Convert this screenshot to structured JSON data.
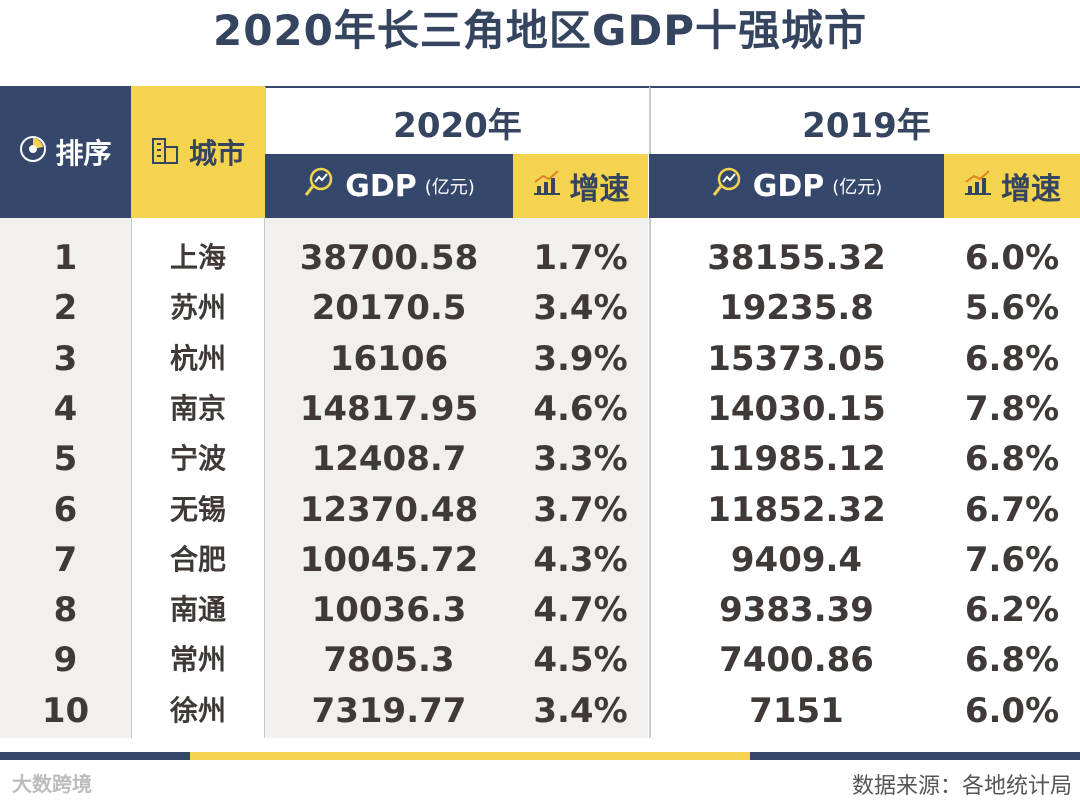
{
  "title": "2020年长三角地区GDP十强城市",
  "header": {
    "rank": "排序",
    "city": "城市",
    "year_2020": "2020年",
    "year_2019": "2019年",
    "gdp": "GDP",
    "gdp_unit": "(亿元)",
    "growth": "增速"
  },
  "chart_data": {
    "type": "table",
    "title": "2020年长三角地区GDP十强城市",
    "columns": [
      "排序",
      "城市",
      "2020年 GDP (亿元)",
      "2020年 增速",
      "2019年 GDP (亿元)",
      "2019年 增速"
    ],
    "rows": [
      {
        "rank": "1",
        "city": "上海",
        "gdp2020": "38700.58",
        "growth2020": "1.7%",
        "gdp2019": "38155.32",
        "growth2019": "6.0%"
      },
      {
        "rank": "2",
        "city": "苏州",
        "gdp2020": "20170.5",
        "growth2020": "3.4%",
        "gdp2019": "19235.8",
        "growth2019": "5.6%"
      },
      {
        "rank": "3",
        "city": "杭州",
        "gdp2020": "16106",
        "growth2020": "3.9%",
        "gdp2019": "15373.05",
        "growth2019": "6.8%"
      },
      {
        "rank": "4",
        "city": "南京",
        "gdp2020": "14817.95",
        "growth2020": "4.6%",
        "gdp2019": "14030.15",
        "growth2019": "7.8%"
      },
      {
        "rank": "5",
        "city": "宁波",
        "gdp2020": "12408.7",
        "growth2020": "3.3%",
        "gdp2019": "11985.12",
        "growth2019": "6.8%"
      },
      {
        "rank": "6",
        "city": "无锡",
        "gdp2020": "12370.48",
        "growth2020": "3.7%",
        "gdp2019": "11852.32",
        "growth2019": "6.7%"
      },
      {
        "rank": "7",
        "city": "合肥",
        "gdp2020": "10045.72",
        "growth2020": "4.3%",
        "gdp2019": "9409.4",
        "growth2019": "7.6%"
      },
      {
        "rank": "8",
        "city": "南通",
        "gdp2020": "10036.3",
        "growth2020": "4.7%",
        "gdp2019": "9383.39",
        "growth2019": "6.2%"
      },
      {
        "rank": "9",
        "city": "常州",
        "gdp2020": "7805.3",
        "growth2020": "4.5%",
        "gdp2019": "7400.86",
        "growth2019": "6.8%"
      },
      {
        "rank": "10",
        "city": "徐州",
        "gdp2020": "7319.77",
        "growth2020": "3.4%",
        "gdp2019": "7151",
        "growth2019": "6.0%"
      }
    ]
  },
  "footer": {
    "watermark": "大数跨境",
    "source": "数据来源：各地统计局"
  },
  "colors": {
    "navy": "#35486b",
    "yellow": "#f4d34e",
    "title": "#35445f",
    "text": "#3f3a38"
  }
}
